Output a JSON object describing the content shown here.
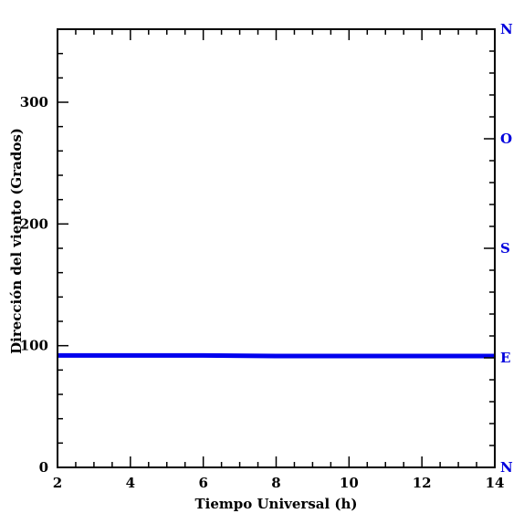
{
  "chart_data": {
    "type": "line",
    "xlabel": "Tiempo Universal (h)",
    "ylabel": "Dirección del viento (Grados)",
    "xlim": [
      2,
      14
    ],
    "ylim": [
      0,
      360
    ],
    "x_ticks": [
      {
        "value": 2,
        "label": "2"
      },
      {
        "value": 4,
        "label": "4"
      },
      {
        "value": 6,
        "label": "6"
      },
      {
        "value": 8,
        "label": "8"
      },
      {
        "value": 10,
        "label": "10"
      },
      {
        "value": 12,
        "label": "12"
      },
      {
        "value": 14,
        "label": "14"
      }
    ],
    "y_ticks": [
      {
        "value": 0,
        "label": "0"
      },
      {
        "value": 100,
        "label": "100"
      },
      {
        "value": 200,
        "label": "200"
      },
      {
        "value": 300,
        "label": "300"
      }
    ],
    "compass_ticks": [
      {
        "value": 0,
        "label": "N"
      },
      {
        "value": 90,
        "label": "E"
      },
      {
        "value": 180,
        "label": "S"
      },
      {
        "value": 270,
        "label": "O"
      },
      {
        "value": 360,
        "label": "N"
      }
    ],
    "compass_color": "#0000dd",
    "grid": false,
    "series": [
      {
        "color": "#0000ee",
        "x": [
          2,
          4,
          6,
          8,
          10,
          12,
          14
        ],
        "y": [
          92,
          92,
          92,
          91.5,
          91.5,
          91.5,
          91.5
        ]
      }
    ]
  }
}
